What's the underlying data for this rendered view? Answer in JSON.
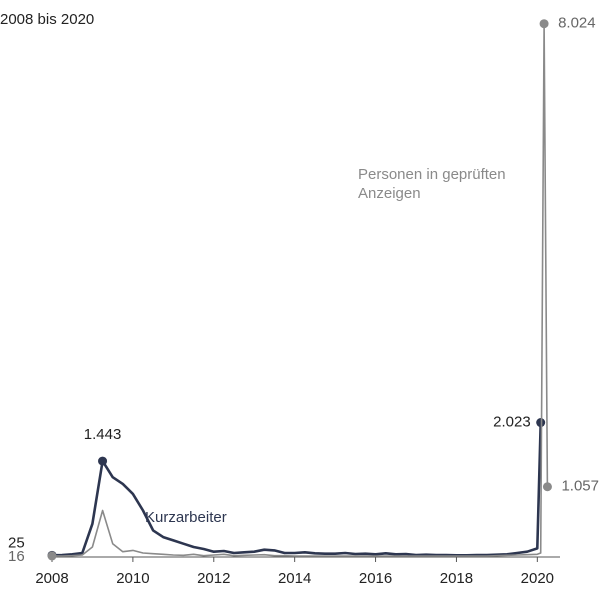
{
  "chart_data": {
    "type": "line",
    "title": "2008 bis 2020",
    "x": [
      2008,
      2008.25,
      2008.5,
      2008.75,
      2009,
      2009.25,
      2009.5,
      2009.75,
      2010,
      2010.25,
      2010.5,
      2010.75,
      2011,
      2011.25,
      2011.5,
      2011.75,
      2012,
      2012.25,
      2012.5,
      2012.75,
      2013,
      2013.25,
      2013.5,
      2013.75,
      2014,
      2014.25,
      2014.5,
      2014.75,
      2015,
      2015.25,
      2015.5,
      2015.75,
      2016,
      2016.25,
      2016.5,
      2016.75,
      2017,
      2017.25,
      2017.5,
      2017.75,
      2018,
      2018.25,
      2018.5,
      2018.75,
      2019,
      2019.25,
      2019.5,
      2019.75,
      2020,
      2020.083,
      2020.167,
      2020.25
    ],
    "xlim": [
      2008,
      2021.5
    ],
    "xticks": [
      2008,
      2010,
      2012,
      2014,
      2016,
      2018,
      2020
    ],
    "ylim": [
      0,
      8200
    ],
    "series": [
      {
        "name": "Kurzarbeiter",
        "color": "#2d3650",
        "values": [
          25,
          30,
          40,
          60,
          500,
          1443,
          1200,
          1100,
          950,
          700,
          400,
          300,
          250,
          200,
          150,
          120,
          80,
          90,
          60,
          70,
          80,
          110,
          100,
          60,
          60,
          70,
          55,
          50,
          50,
          60,
          45,
          50,
          40,
          55,
          40,
          45,
          30,
          35,
          30,
          30,
          25,
          25,
          30,
          30,
          35,
          40,
          60,
          80,
          130,
          2023,
          null,
          null
        ],
        "value_labels": [
          "25",
          null,
          null,
          null,
          null,
          "1.443",
          null,
          null,
          null,
          null,
          null,
          null,
          null,
          null,
          null,
          null,
          null,
          null,
          null,
          null,
          null,
          null,
          null,
          null,
          null,
          null,
          null,
          null,
          null,
          null,
          null,
          null,
          null,
          null,
          null,
          null,
          null,
          null,
          null,
          null,
          null,
          null,
          null,
          null,
          null,
          null,
          null,
          null,
          null,
          "2.023",
          null,
          null
        ]
      },
      {
        "name": "Personen in geprüften Anzeigen",
        "color": "#8a8a8a",
        "values": [
          16,
          15,
          20,
          30,
          150,
          700,
          200,
          80,
          100,
          60,
          50,
          40,
          30,
          25,
          40,
          20,
          30,
          40,
          20,
          25,
          30,
          35,
          20,
          20,
          15,
          15,
          15,
          15,
          15,
          15,
          15,
          15,
          15,
          15,
          15,
          15,
          15,
          15,
          15,
          15,
          15,
          15,
          15,
          15,
          20,
          25,
          30,
          35,
          40,
          60,
          8024,
          1057
        ],
        "value_labels": [
          "16",
          null,
          null,
          null,
          null,
          null,
          null,
          null,
          null,
          null,
          null,
          null,
          null,
          null,
          null,
          null,
          null,
          null,
          null,
          null,
          null,
          null,
          null,
          null,
          null,
          null,
          null,
          null,
          null,
          null,
          null,
          null,
          null,
          null,
          null,
          null,
          null,
          null,
          null,
          null,
          null,
          null,
          null,
          null,
          null,
          null,
          null,
          null,
          null,
          null,
          "8.024",
          "1.057"
        ]
      }
    ]
  }
}
